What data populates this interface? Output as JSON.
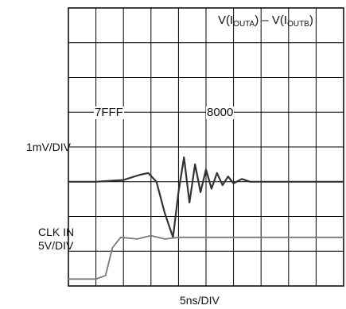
{
  "chart_data": {
    "type": "line",
    "title_parts": {
      "v1": "V(I",
      "sub1": "OUTA",
      "mid": ") – V(I",
      "sub2": "OUTB",
      "end": ")"
    },
    "codes": [
      "7FFF",
      "8000"
    ],
    "channel1": {
      "label": "1mV/DIV"
    },
    "channel2": {
      "label_line1": "CLK IN",
      "label_line2": "5V/DIV"
    },
    "xlabel": "5ns/DIV",
    "grid": {
      "x_divisions": 10,
      "y_divisions": 8,
      "on": true
    },
    "xlim": [
      0,
      10
    ],
    "series": [
      {
        "x": [
          0,
          1,
          2,
          2.6,
          2.9,
          3.2,
          3.5,
          3.8,
          4.0,
          4.2,
          4.4,
          4.6,
          4.8,
          5.0,
          5.2,
          5.4,
          5.6,
          5.8,
          6.0,
          6.3,
          6.6,
          7,
          8,
          9,
          10
        ],
        "y": [
          0,
          0,
          0.05,
          0.2,
          0.25,
          0,
          -0.9,
          -1.6,
          -0.3,
          0.7,
          -0.6,
          0.5,
          -0.3,
          0.35,
          -0.2,
          0.25,
          -0.1,
          0.15,
          -0.05,
          0.08,
          0,
          0,
          0,
          0,
          0
        ],
        "baseline_div": 5
      },
      {
        "x": [
          0,
          0.5,
          1.0,
          1.35,
          1.6,
          1.9,
          2.5,
          3.0,
          3.5,
          4.0,
          5,
          6,
          7,
          8,
          9,
          10
        ],
        "y": [
          0,
          0,
          0,
          0.1,
          0.9,
          1.2,
          1.15,
          1.25,
          1.15,
          1.2,
          1.2,
          1.2,
          1.2,
          1.2,
          1.2,
          1.2
        ],
        "baseline_div": 7.8
      }
    ]
  }
}
